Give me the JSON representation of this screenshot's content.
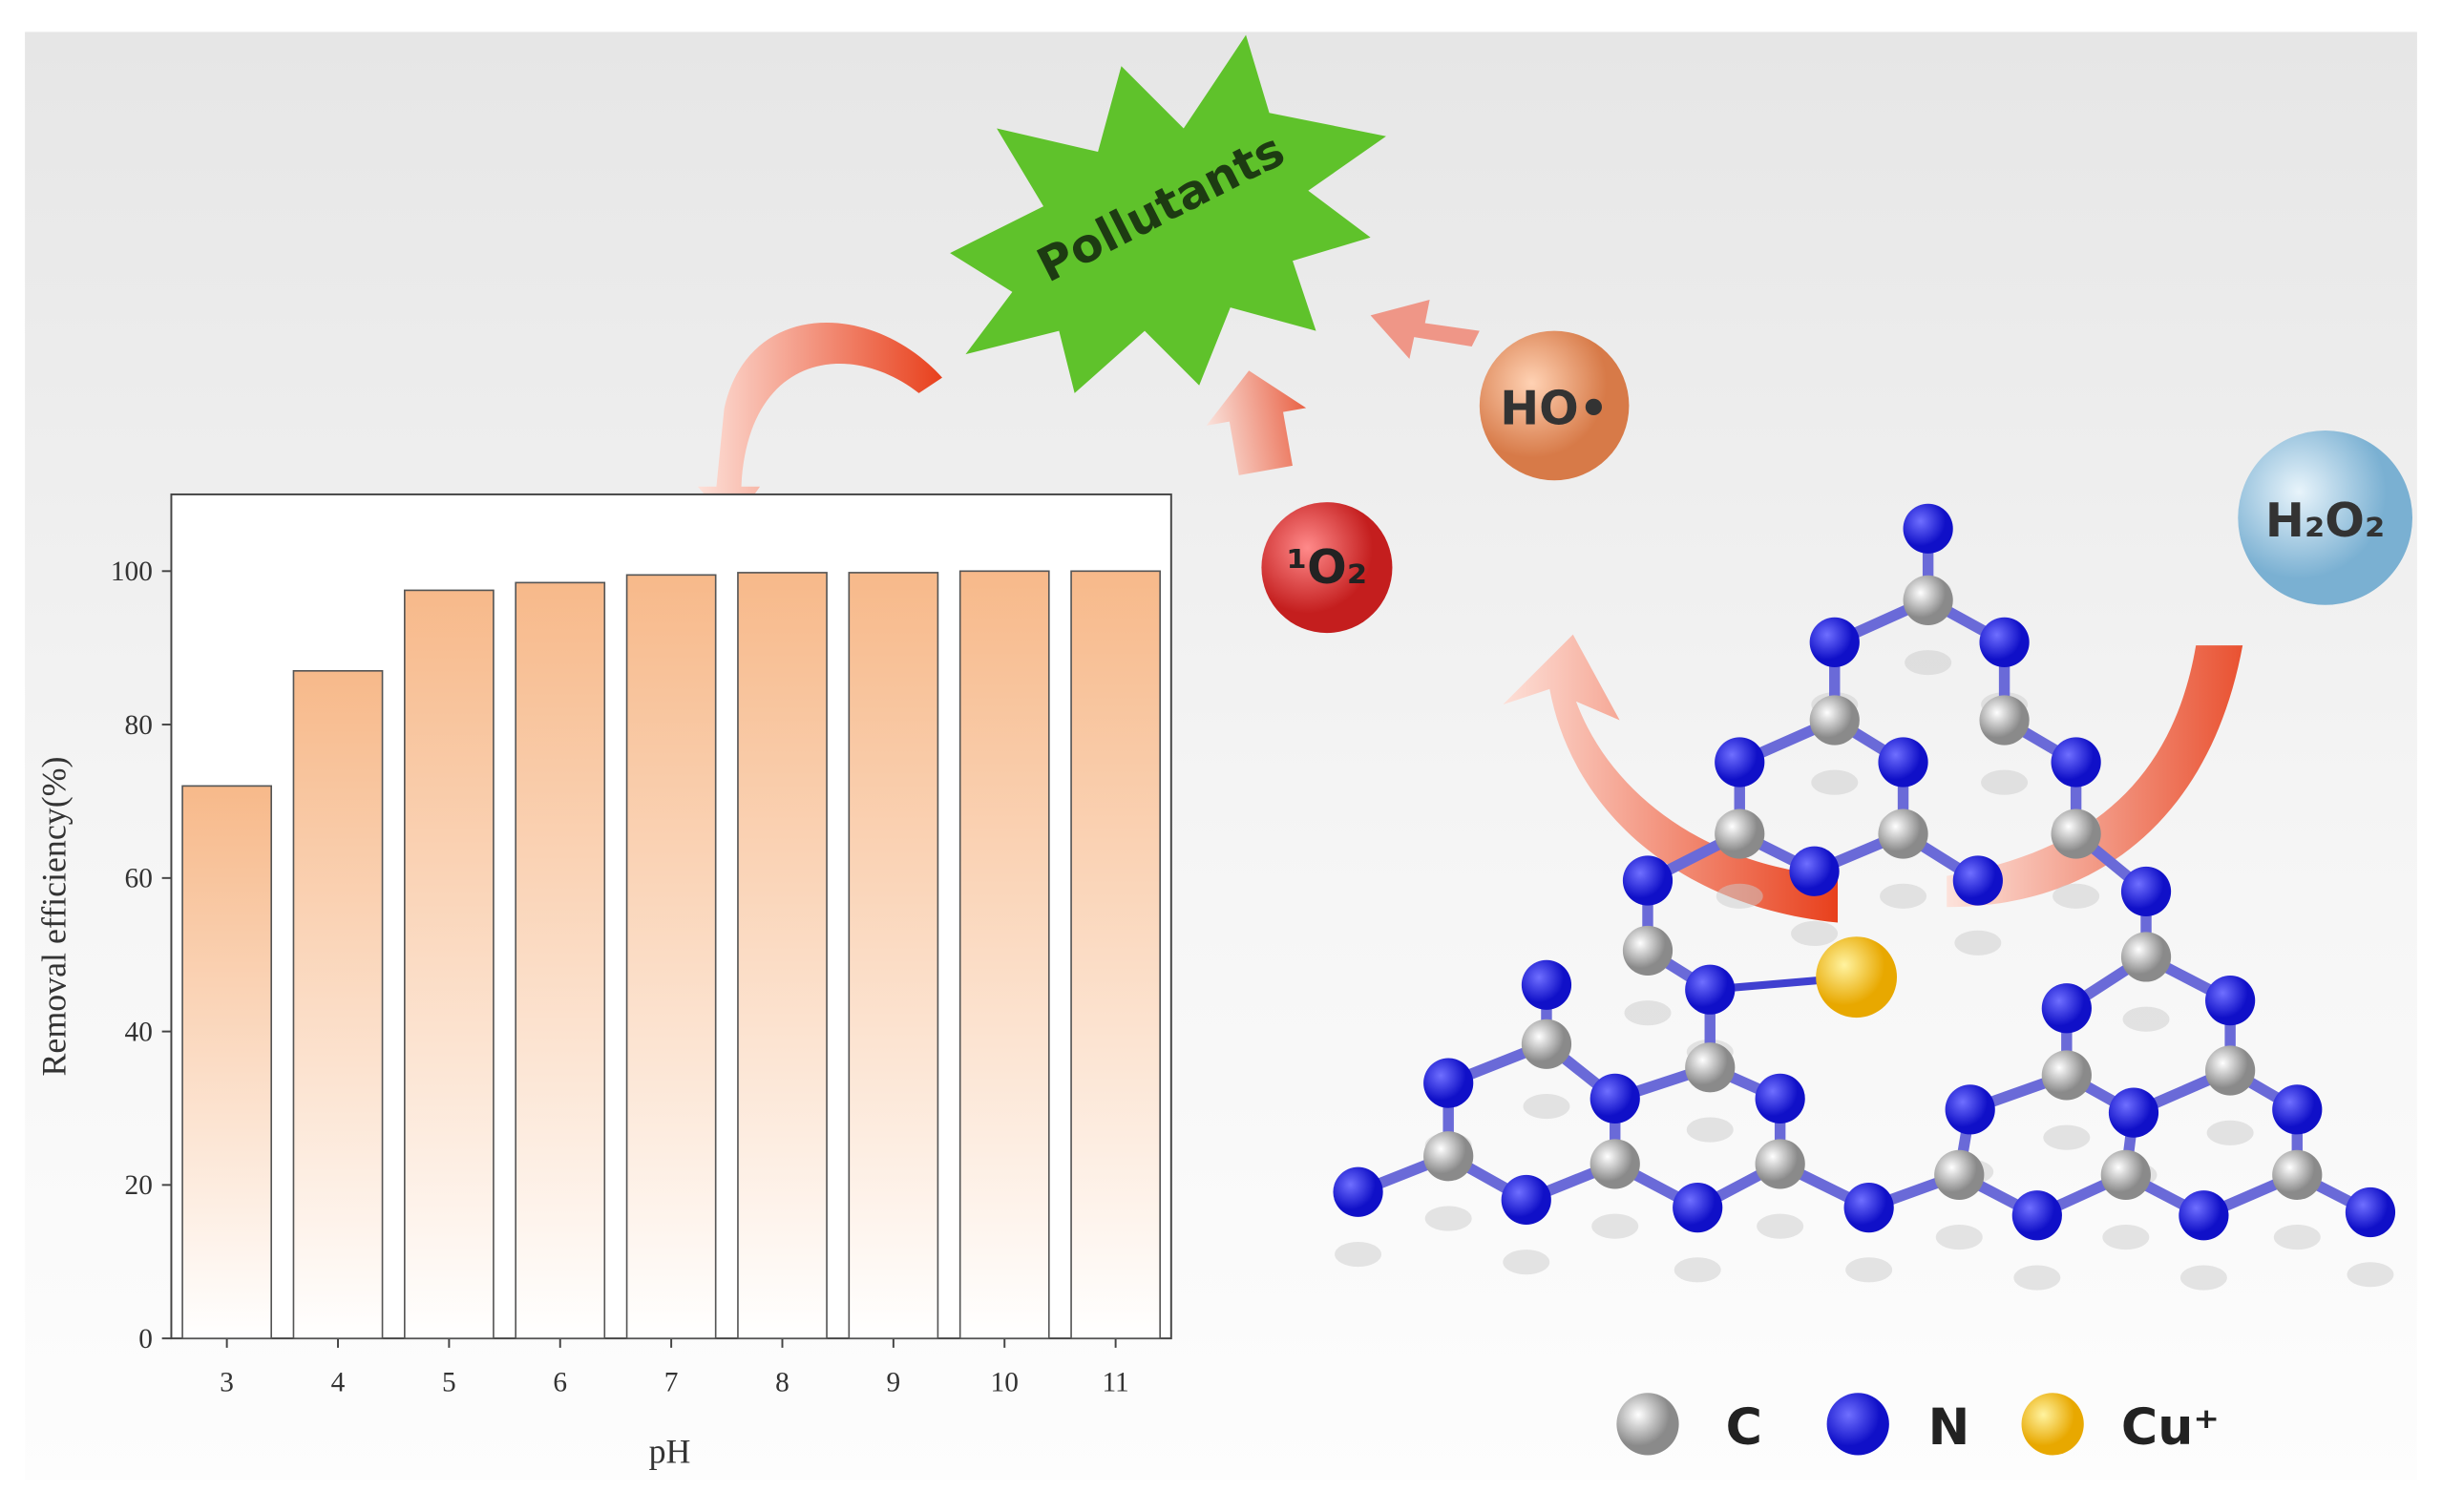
{
  "chart_data": {
    "type": "bar",
    "categories": [
      "3",
      "4",
      "5",
      "6",
      "7",
      "8",
      "9",
      "10",
      "11"
    ],
    "values": [
      72,
      87,
      97.5,
      98.5,
      99.5,
      99.8,
      99.8,
      100,
      100
    ],
    "color": "#f7b98a",
    "xlabel": "pH",
    "ylabel": "Removal efficiency(%)",
    "ylim": [
      0,
      110
    ],
    "yticks": [
      0,
      20,
      40,
      60,
      80,
      100
    ],
    "grid": false
  },
  "labels": {
    "pollutants": "Pollutants",
    "hydroxyl": "HO•",
    "singlet_oxygen": "¹O₂",
    "peroxide": "H₂O₂",
    "legend": [
      "C",
      "N",
      "Cu⁺"
    ]
  }
}
